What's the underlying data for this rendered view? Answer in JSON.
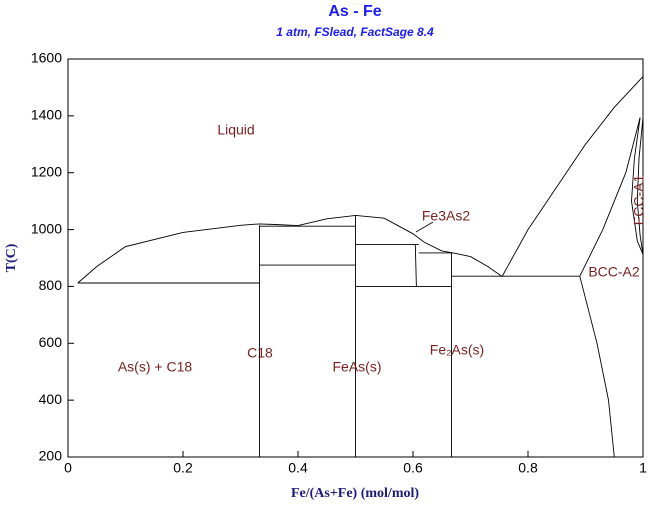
{
  "chart_data": {
    "type": "line",
    "title": "As - Fe",
    "subtitle": "1 atm, FSlead, FactSage 8.4",
    "x_label": "Fe/(As+Fe) (mol/mol)",
    "y_label": "T(C)",
    "xlim": [
      0,
      1
    ],
    "ylim": [
      200,
      1600
    ],
    "xticks": [
      0,
      0.2,
      0.4,
      0.6,
      0.8,
      1
    ],
    "yticks": [
      200,
      400,
      600,
      800,
      1000,
      1200,
      1400,
      1600
    ],
    "annotations": [
      "Liquid",
      "Fe3As2",
      "As(s) + C18",
      "C18",
      "FeAs(s)",
      "Fe₂As(s)",
      "BCC-A2",
      "FCC-A1"
    ],
    "series": [
      {
        "color": "#000000",
        "x": [
          0.017,
          0.05,
          0.1,
          0.2,
          0.3,
          0.333,
          0.36,
          0.4,
          0.45,
          0.5,
          0.55,
          0.6,
          0.62,
          0.65,
          0.67,
          0.7,
          0.73,
          0.755
        ],
        "values": [
          812,
          870,
          940,
          990,
          1015,
          1020,
          1018,
          1014,
          1038,
          1050,
          1040,
          985,
          955,
          925,
          918,
          905,
          870,
          835
        ]
      },
      {
        "color": "#000000",
        "x": [
          0.755,
          0.8,
          0.85,
          0.9,
          0.95,
          1
        ],
        "values": [
          835,
          1000,
          1150,
          1300,
          1430,
          1538
        ]
      },
      {
        "color": "#000000",
        "x": [
          0.017,
          0.333
        ],
        "values": [
          812,
          812
        ]
      },
      {
        "color": "#000000",
        "x": [
          0.333,
          0.333
        ],
        "values": [
          200,
          1015
        ]
      },
      {
        "color": "#000000",
        "x": [
          0.333,
          0.5
        ],
        "values": [
          1012,
          1012
        ]
      },
      {
        "color": "#000000",
        "x": [
          0.333,
          0.5
        ],
        "values": [
          875,
          875
        ]
      },
      {
        "color": "#000000",
        "x": [
          0.5,
          0.5
        ],
        "values": [
          200,
          1050
        ]
      },
      {
        "color": "#000000",
        "x": [
          0.5,
          0.61
        ],
        "values": [
          948,
          948
        ]
      },
      {
        "color": "#000000",
        "x": [
          0.5,
          0.667
        ],
        "values": [
          800,
          800
        ]
      },
      {
        "color": "#000000",
        "x": [
          0.604,
          0.606
        ],
        "values": [
          948,
          800
        ]
      },
      {
        "color": "#000000",
        "x": [
          0.61,
          0.667
        ],
        "values": [
          918,
          918
        ]
      },
      {
        "color": "#000000",
        "x": [
          0.667,
          0.667
        ],
        "values": [
          200,
          918
        ]
      },
      {
        "color": "#000000",
        "x": [
          0.667,
          0.89
        ],
        "values": [
          836,
          836
        ]
      },
      {
        "color": "#000000",
        "x": [
          0.89,
          0.92,
          0.94,
          0.95
        ],
        "values": [
          836,
          600,
          400,
          200
        ]
      },
      {
        "color": "#000000",
        "x": [
          0.89,
          0.93,
          0.97,
          0.995
        ],
        "values": [
          836,
          1000,
          1200,
          1394
        ]
      },
      {
        "color": "#000000",
        "x": [
          0.995,
          0.985,
          0.98,
          0.99,
          1
        ],
        "values": [
          1394,
          1250,
          1100,
          960,
          912
        ]
      },
      {
        "color": "#000000",
        "x": [
          1,
          0.993,
          0.99,
          0.995,
          1
        ],
        "values": [
          1394,
          1250,
          1100,
          980,
          912
        ]
      }
    ]
  }
}
